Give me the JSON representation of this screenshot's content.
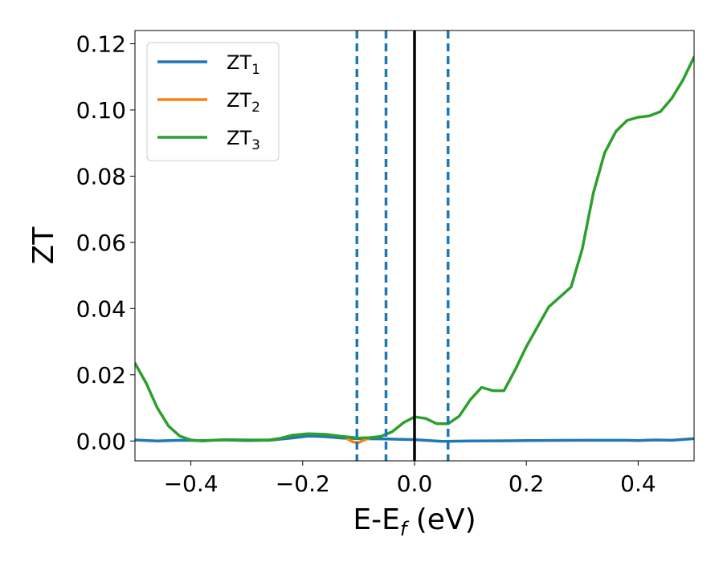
{
  "chart_data": {
    "type": "line",
    "xlabel": "E-E",
    "xlabel_subscript": "f",
    "xlabel_unit": " (eV)",
    "ylabel": "ZT",
    "xlim": [
      -0.5,
      0.5
    ],
    "ylim": [
      -0.006,
      0.124
    ],
    "grid": false,
    "legend_position": "top-left",
    "x_ticks": [
      -0.4,
      -0.2,
      0.0,
      0.2,
      0.4
    ],
    "x_tick_labels": [
      "−0.4",
      "−0.2",
      "0.0",
      "0.2",
      "0.4"
    ],
    "y_ticks": [
      0.0,
      0.02,
      0.04,
      0.06,
      0.08,
      0.1,
      0.12
    ],
    "y_tick_labels": [
      "0.00",
      "0.02",
      "0.04",
      "0.06",
      "0.08",
      "0.10",
      "0.12"
    ],
    "vlines": [
      {
        "x": -0.103,
        "style": "dashed",
        "color": "#1f77b4"
      },
      {
        "x": -0.051,
        "style": "dashed",
        "color": "#1f77b4"
      },
      {
        "x": 0.0,
        "style": "solid",
        "color": "#000000"
      },
      {
        "x": 0.06,
        "style": "dashed",
        "color": "#1f77b4"
      }
    ],
    "series": [
      {
        "name": "ZT",
        "subscript": "1",
        "color": "#1f77b4",
        "points": [
          [
            -0.5,
            0.0003
          ],
          [
            -0.46,
            0.0
          ],
          [
            -0.42,
            0.0002
          ],
          [
            -0.38,
            0.0001
          ],
          [
            -0.34,
            0.0003
          ],
          [
            -0.3,
            0.0001
          ],
          [
            -0.26,
            0.0002
          ],
          [
            -0.22,
            0.0009
          ],
          [
            -0.19,
            0.0015
          ],
          [
            -0.16,
            0.0013
          ],
          [
            -0.13,
            0.0009
          ],
          [
            -0.1,
            0.0007
          ],
          [
            -0.05,
            0.0006
          ],
          [
            0.0,
            0.0004
          ],
          [
            0.05,
            -0.0001
          ],
          [
            0.1,
            0.0
          ],
          [
            0.2,
            0.0001
          ],
          [
            0.3,
            0.0002
          ],
          [
            0.38,
            0.0002
          ],
          [
            0.4,
            0.0001
          ],
          [
            0.43,
            0.0003
          ],
          [
            0.46,
            0.0002
          ],
          [
            0.5,
            0.0007
          ]
        ]
      },
      {
        "name": "ZT",
        "subscript": "2",
        "color": "#ff7f0e",
        "points": [
          [
            -0.12,
            0.0006
          ],
          [
            -0.11,
            -0.0003
          ],
          [
            -0.1,
            -0.0005
          ],
          [
            -0.09,
            0.0003
          ],
          [
            -0.08,
            0.0009
          ]
        ]
      },
      {
        "name": "ZT",
        "subscript": "3",
        "color": "#2ca02c",
        "points": [
          [
            -0.5,
            0.0235
          ],
          [
            -0.48,
            0.0175
          ],
          [
            -0.46,
            0.01
          ],
          [
            -0.44,
            0.0045
          ],
          [
            -0.42,
            0.0015
          ],
          [
            -0.4,
            0.0003
          ],
          [
            -0.38,
            0.0
          ],
          [
            -0.36,
            0.0002
          ],
          [
            -0.34,
            0.0004
          ],
          [
            -0.3,
            0.0003
          ],
          [
            -0.26,
            0.0003
          ],
          [
            -0.24,
            0.0008
          ],
          [
            -0.22,
            0.0017
          ],
          [
            -0.19,
            0.0022
          ],
          [
            -0.16,
            0.002
          ],
          [
            -0.13,
            0.0014
          ],
          [
            -0.1,
            0.0009
          ],
          [
            -0.08,
            0.001
          ],
          [
            -0.06,
            0.0014
          ],
          [
            -0.04,
            0.0028
          ],
          [
            -0.02,
            0.0055
          ],
          [
            0.0,
            0.0073
          ],
          [
            0.02,
            0.0068
          ],
          [
            0.04,
            0.0052
          ],
          [
            0.06,
            0.0052
          ],
          [
            0.08,
            0.0075
          ],
          [
            0.1,
            0.0125
          ],
          [
            0.12,
            0.0162
          ],
          [
            0.14,
            0.0152
          ],
          [
            0.16,
            0.0152
          ],
          [
            0.18,
            0.0215
          ],
          [
            0.2,
            0.0285
          ],
          [
            0.22,
            0.0345
          ],
          [
            0.24,
            0.0405
          ],
          [
            0.26,
            0.0435
          ],
          [
            0.28,
            0.0465
          ],
          [
            0.3,
            0.058
          ],
          [
            0.32,
            0.075
          ],
          [
            0.34,
            0.087
          ],
          [
            0.36,
            0.0935
          ],
          [
            0.38,
            0.0968
          ],
          [
            0.4,
            0.0978
          ],
          [
            0.42,
            0.0982
          ],
          [
            0.44,
            0.0995
          ],
          [
            0.46,
            0.1035
          ],
          [
            0.48,
            0.109
          ],
          [
            0.5,
            0.116
          ]
        ]
      }
    ]
  }
}
